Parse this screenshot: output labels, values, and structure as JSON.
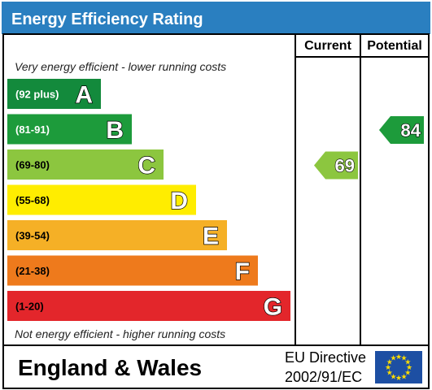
{
  "title": "Energy Efficiency Rating",
  "columns": {
    "current": "Current",
    "potential": "Potential"
  },
  "top_note": "Very energy efficient - lower running costs",
  "bottom_note": "Not energy efficient - higher running costs",
  "footer": {
    "region": "England & Wales",
    "directive_line1": "EU Directive",
    "directive_line2": "2002/91/EC"
  },
  "colors": {
    "header": "#2a7fc0",
    "eu_flag": "#1d4fa3",
    "eu_stars": "#ffdd00"
  },
  "chart_data": {
    "type": "bar",
    "title": "Energy Efficiency Rating",
    "categories": [
      "A",
      "B",
      "C",
      "D",
      "E",
      "F",
      "G"
    ],
    "bands": [
      {
        "letter": "A",
        "range": "(92 plus)",
        "color": "#138a3c",
        "text_color": "#ffffff"
      },
      {
        "letter": "B",
        "range": "(81-91)",
        "color": "#1d9b3b",
        "text_color": "#ffffff"
      },
      {
        "letter": "C",
        "range": "(69-80)",
        "color": "#8cc63f",
        "text_color": "#000000"
      },
      {
        "letter": "D",
        "range": "(55-68)",
        "color": "#ffed00",
        "text_color": "#000000"
      },
      {
        "letter": "E",
        "range": "(39-54)",
        "color": "#f5b026",
        "text_color": "#000000"
      },
      {
        "letter": "F",
        "range": "(21-38)",
        "color": "#ee7a1c",
        "text_color": "#000000"
      },
      {
        "letter": "G",
        "range": "(1-20)",
        "color": "#e3262b",
        "text_color": "#000000"
      }
    ],
    "ratings": [
      {
        "name": "Current",
        "value": 69,
        "band": "C",
        "color": "#8cc63f"
      },
      {
        "name": "Potential",
        "value": 84,
        "band": "B",
        "color": "#1d9b3b"
      }
    ]
  }
}
